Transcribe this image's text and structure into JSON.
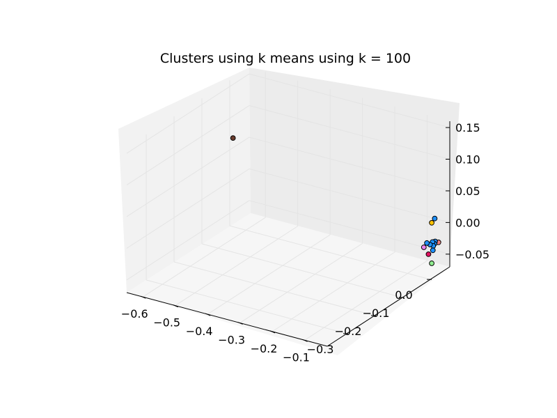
{
  "chart_data": {
    "type": "scatter",
    "projection": "3d",
    "title": "Clusters using k means using k = 100",
    "xlabel": "",
    "ylabel": "",
    "zlabel": "",
    "grid": true,
    "xlim": [
      -0.65,
      -0.03
    ],
    "ylim": [
      -0.37,
      0.07
    ],
    "zlim": [
      -0.07,
      0.16
    ],
    "x_ticks": [
      -0.6,
      -0.5,
      -0.4,
      -0.3,
      -0.2,
      -0.1
    ],
    "x_tick_labels": [
      "−0.6",
      "−0.5",
      "−0.4",
      "−0.3",
      "−0.2",
      "−0.1"
    ],
    "y_ticks": [
      -0.3,
      -0.2,
      -0.1,
      0.0
    ],
    "y_tick_labels": [
      "−0.3",
      "−0.2",
      "−0.1",
      "0.0"
    ],
    "z_ticks": [
      -0.05,
      0.0,
      0.05,
      0.1,
      0.15
    ],
    "z_tick_labels": [
      "−0.05",
      "0.00",
      "0.05",
      "0.10",
      "0.15"
    ],
    "points": [
      {
        "x": -0.64,
        "y": 0.0,
        "z": 0.07,
        "color": "#6b3d2e"
      },
      {
        "x": -0.055,
        "y": 0.045,
        "z": 0.01,
        "color": "#1e90ff"
      },
      {
        "x": -0.06,
        "y": 0.04,
        "z": 0.004,
        "color": "#ffc300"
      },
      {
        "x": -0.052,
        "y": 0.055,
        "z": -0.03,
        "color": "#f08080"
      },
      {
        "x": -0.058,
        "y": 0.05,
        "z": -0.028,
        "color": "#1e90ff"
      },
      {
        "x": -0.06,
        "y": 0.05,
        "z": -0.032,
        "color": "#1e90ff"
      },
      {
        "x": -0.062,
        "y": 0.045,
        "z": -0.028,
        "color": "#1e90ff"
      },
      {
        "x": -0.062,
        "y": 0.048,
        "z": -0.035,
        "color": "#1e90ff"
      },
      {
        "x": -0.067,
        "y": 0.042,
        "z": -0.032,
        "color": "#1e90ff"
      },
      {
        "x": -0.075,
        "y": 0.04,
        "z": -0.03,
        "color": "#1e90ff"
      },
      {
        "x": -0.08,
        "y": 0.035,
        "z": -0.036,
        "color": "#ee82ee"
      },
      {
        "x": -0.065,
        "y": 0.05,
        "z": -0.043,
        "color": "#1e90ff"
      },
      {
        "x": -0.07,
        "y": 0.04,
        "z": -0.047,
        "color": "#e0115f"
      },
      {
        "x": -0.06,
        "y": 0.04,
        "z": -0.06,
        "color": "#90ee90"
      }
    ]
  }
}
